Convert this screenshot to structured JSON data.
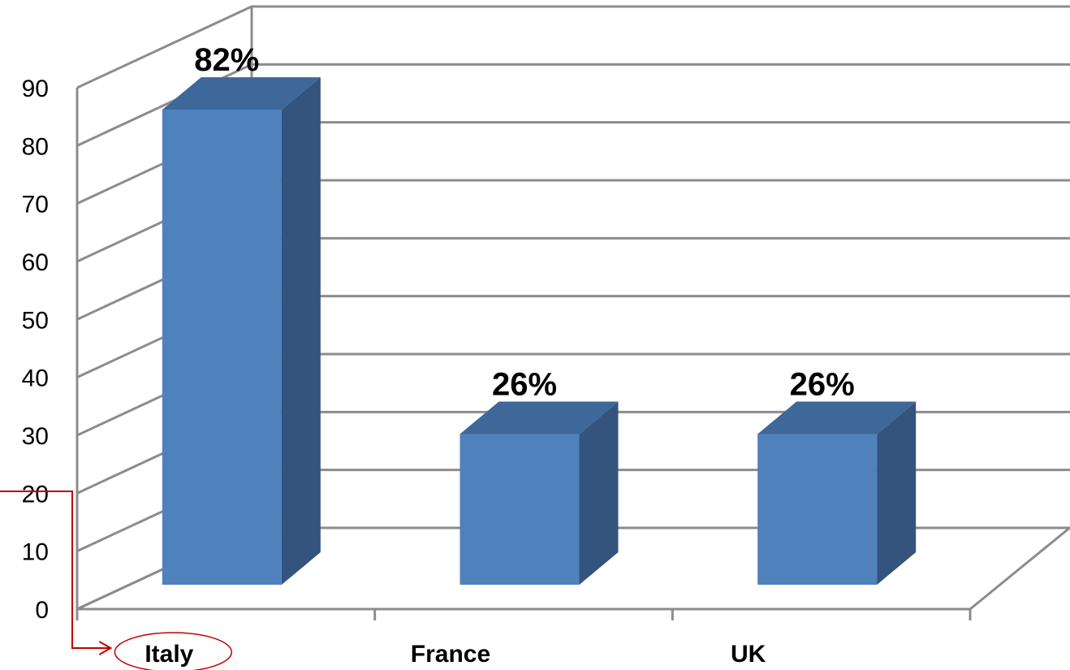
{
  "chart_data": {
    "type": "bar",
    "style": "3d-column",
    "categories": [
      "Italy",
      "France",
      "UK"
    ],
    "values": [
      82,
      26,
      26
    ],
    "data_labels": [
      "82%",
      "26%",
      "26%"
    ],
    "y_ticks": [
      "0",
      "10",
      "20",
      "30",
      "40",
      "50",
      "60",
      "70",
      "80",
      "90"
    ],
    "ylim": [
      0,
      90
    ],
    "grid": true,
    "legend": "none",
    "highlighted_category": "Italy",
    "colors": {
      "bar_front": "#4f81bd",
      "bar_top": "#3e679a",
      "bar_side": "#34547d",
      "grid": "#8c8c8c",
      "annotation": "#c00000"
    }
  }
}
